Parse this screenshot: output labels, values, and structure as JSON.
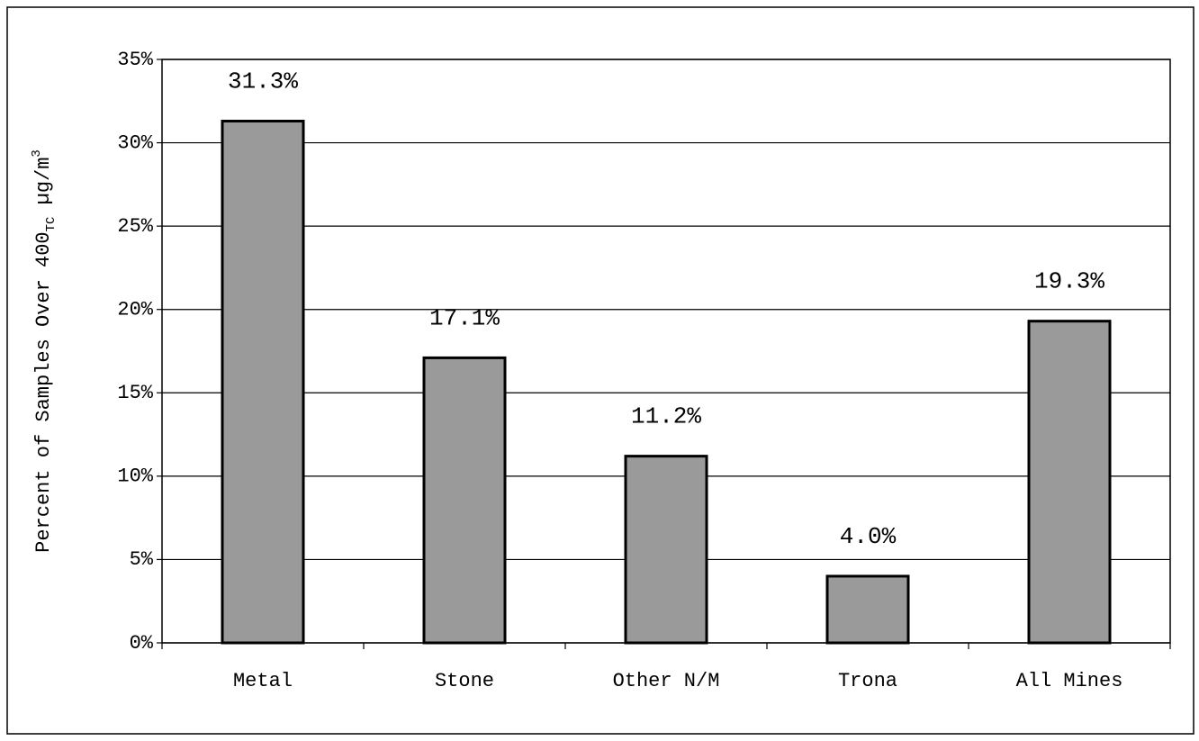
{
  "chart_data": {
    "type": "bar",
    "y_label": "Percent of Samples Over 400",
    "y_label_sub": "TC",
    "y_label_unit": " µg/m",
    "y_label_sup": "3",
    "categories": [
      "Metal",
      "Stone",
      "Other N/M",
      "Trona",
      "All Mines"
    ],
    "values": [
      31.3,
      17.1,
      11.2,
      4.0,
      19.3
    ],
    "value_labels": [
      "31.3%",
      "17.1%",
      "11.2%",
      "4.0%",
      "19.3%"
    ],
    "color": "#9a9a9a",
    "ylim": [
      0,
      35
    ],
    "yticks": [
      {
        "value": 0,
        "label": "0%"
      },
      {
        "value": 5,
        "label": "5%"
      },
      {
        "value": 10,
        "label": "10%"
      },
      {
        "value": 15,
        "label": "15%"
      },
      {
        "value": 20,
        "label": "20%"
      },
      {
        "value": 25,
        "label": "25%"
      },
      {
        "value": 30,
        "label": "30%"
      },
      {
        "value": 35,
        "label": "35%"
      }
    ],
    "grid": true
  }
}
